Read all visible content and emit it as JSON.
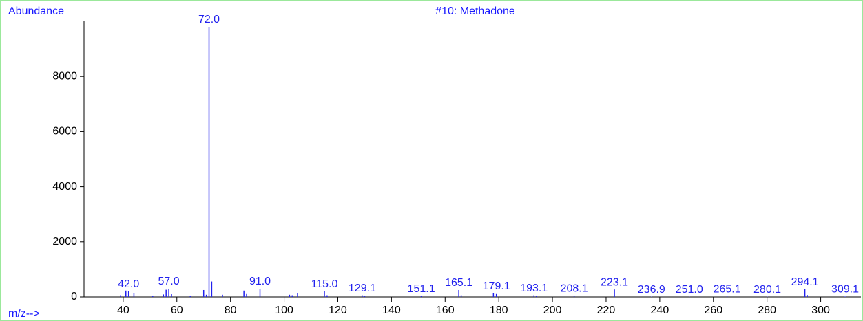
{
  "chart_data": {
    "type": "spectrum",
    "title": "#10: Methadone",
    "y_label": "Abundance",
    "x_label": "m/z-->",
    "color": "#2222ee",
    "xlim": [
      25.4,
      315
    ],
    "ylim": [
      0,
      10000
    ],
    "xticks": [
      40,
      60,
      80,
      100,
      120,
      140,
      160,
      180,
      200,
      220,
      240,
      260,
      280,
      300
    ],
    "yticks": [
      0,
      2000,
      4000,
      6000,
      8000
    ],
    "x": [
      39,
      41,
      42,
      44,
      51,
      55,
      56,
      57,
      58,
      65,
      70,
      71,
      72,
      73,
      77,
      85,
      86,
      91,
      102,
      103,
      105,
      115,
      116,
      129.1,
      130,
      151.1,
      165.1,
      166,
      178,
      179.1,
      193.1,
      194,
      208.1,
      223.1,
      236.9,
      251,
      265.1,
      280.1,
      294.1,
      295,
      309.1
    ],
    "values": [
      60,
      230,
      200,
      150,
      50,
      90,
      260,
      300,
      120,
      40,
      250,
      80,
      9800,
      560,
      80,
      230,
      130,
      300,
      80,
      60,
      150,
      200,
      60,
      60,
      40,
      30,
      250,
      60,
      150,
      130,
      60,
      50,
      40,
      270,
      10,
      10,
      20,
      10,
      280,
      70,
      15
    ],
    "labels": [
      null,
      null,
      "42.0",
      null,
      null,
      null,
      null,
      "57.0",
      null,
      null,
      null,
      null,
      "72.0",
      null,
      null,
      null,
      null,
      "91.0",
      null,
      null,
      null,
      "115.0",
      null,
      "129.1",
      null,
      "151.1",
      "165.1",
      null,
      null,
      "179.1",
      "193.1",
      null,
      "208.1",
      "223.1",
      "236.9",
      "251.0",
      "265.1",
      "280.1",
      "294.1",
      null,
      "309.1"
    ]
  }
}
